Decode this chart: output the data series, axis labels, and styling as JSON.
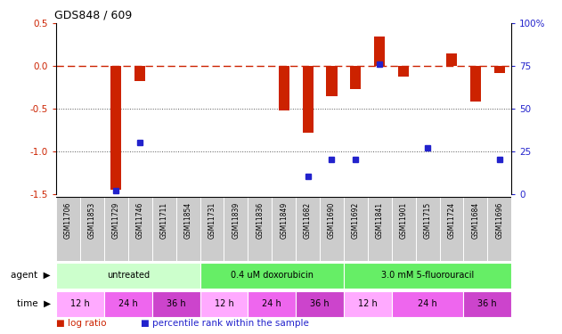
{
  "title": "GDS848 / 609",
  "samples": [
    "GSM11706",
    "GSM11853",
    "GSM11729",
    "GSM11746",
    "GSM11711",
    "GSM11854",
    "GSM11731",
    "GSM11839",
    "GSM11836",
    "GSM11849",
    "GSM11682",
    "GSM11690",
    "GSM11692",
    "GSM11841",
    "GSM11901",
    "GSM11715",
    "GSM11724",
    "GSM11684",
    "GSM11696"
  ],
  "log_ratio": [
    0.0,
    0.0,
    -1.45,
    -0.18,
    0.0,
    0.0,
    0.0,
    0.0,
    0.0,
    -0.52,
    -0.78,
    -0.35,
    -0.27,
    0.35,
    -0.12,
    0.0,
    0.15,
    -0.42,
    -0.08
  ],
  "percentile_rank": [
    null,
    null,
    2,
    30,
    null,
    null,
    null,
    null,
    null,
    null,
    10,
    20,
    20,
    76,
    null,
    27,
    null,
    null,
    20
  ],
  "ylim_left": [
    -1.5,
    0.5
  ],
  "ylim_right": [
    0,
    100
  ],
  "yticks_left": [
    -1.5,
    -1.0,
    -0.5,
    0.0,
    0.5
  ],
  "yticks_right": [
    0,
    25,
    50,
    75,
    100
  ],
  "agent_groups": [
    {
      "label": "untreated",
      "start": 0,
      "end": 6
    },
    {
      "label": "0.4 uM doxorubicin",
      "start": 6,
      "end": 12
    },
    {
      "label": "3.0 mM 5-fluorouracil",
      "start": 12,
      "end": 19
    }
  ],
  "time_groups": [
    {
      "label": "12 h",
      "start": 0,
      "end": 2
    },
    {
      "label": "24 h",
      "start": 2,
      "end": 4
    },
    {
      "label": "36 h",
      "start": 4,
      "end": 6
    },
    {
      "label": "12 h",
      "start": 6,
      "end": 8
    },
    {
      "label": "24 h",
      "start": 8,
      "end": 10
    },
    {
      "label": "36 h",
      "start": 10,
      "end": 12
    },
    {
      "label": "12 h",
      "start": 12,
      "end": 14
    },
    {
      "label": "24 h",
      "start": 14,
      "end": 17
    },
    {
      "label": "36 h",
      "start": 17,
      "end": 19
    }
  ],
  "agent_colors": {
    "untreated": "#ccffcc",
    "0.4 uM doxorubicin": "#66ee66",
    "3.0 mM 5-fluorouracil": "#66ee66"
  },
  "time_colors": {
    "12 h": "#ffaaff",
    "24 h": "#ee66ee",
    "36 h": "#cc44cc"
  },
  "bar_color": "#cc2200",
  "dot_color": "#2222cc",
  "zeroline_color": "#cc2200",
  "dotted_color": "#555555",
  "sample_bg": "#cccccc",
  "label_color_left": "#cc2200",
  "label_color_right": "#2222cc",
  "bg_color": "#ffffff"
}
